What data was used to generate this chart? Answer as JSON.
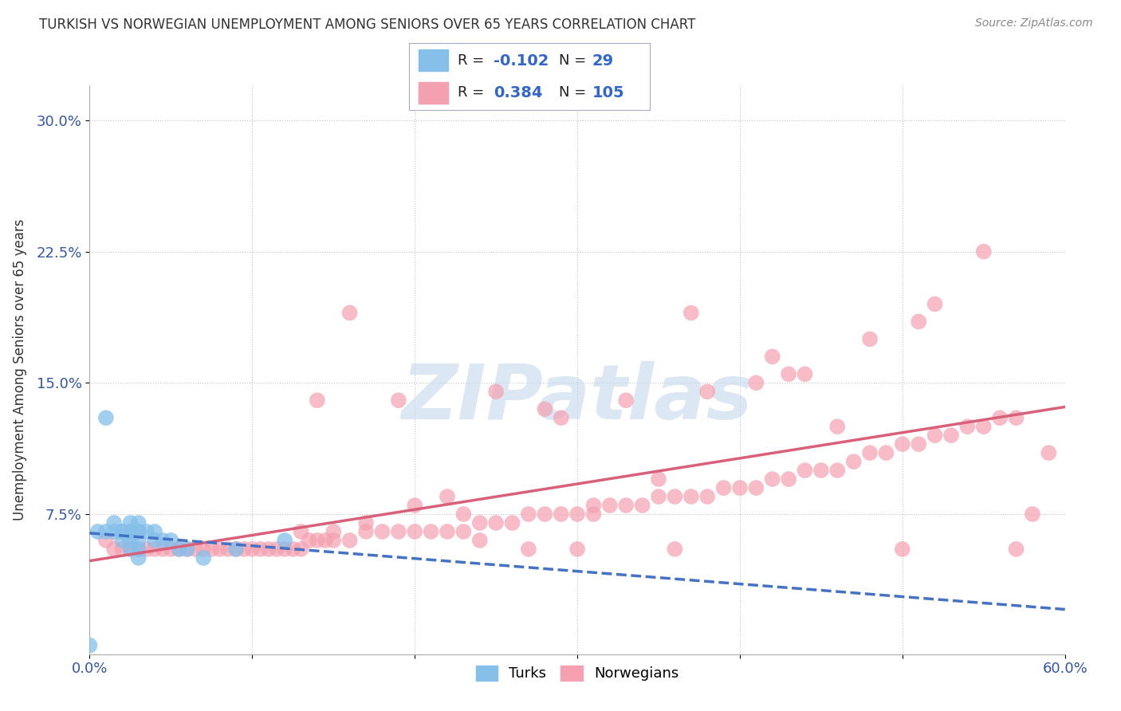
{
  "title": "TURKISH VS NORWEGIAN UNEMPLOYMENT AMONG SENIORS OVER 65 YEARS CORRELATION CHART",
  "source": "Source: ZipAtlas.com",
  "ylabel": "Unemployment Among Seniors over 65 years",
  "xlim": [
    0.0,
    0.6
  ],
  "ylim": [
    -0.005,
    0.32
  ],
  "yticks": [
    0.075,
    0.15,
    0.225,
    0.3
  ],
  "ytick_labels": [
    "7.5%",
    "15.0%",
    "22.5%",
    "30.0%"
  ],
  "xticks": [
    0.0,
    0.1,
    0.2,
    0.3,
    0.4,
    0.5,
    0.6
  ],
  "xtick_labels": [
    "0.0%",
    "",
    "",
    "",
    "",
    "",
    "60.0%"
  ],
  "turks_R": -0.102,
  "turks_N": 29,
  "norwegians_R": 0.384,
  "norwegians_N": 105,
  "turk_color": "#85BFEA",
  "norwegian_color": "#F4A0B0",
  "turk_line_color": "#4472C4",
  "norwegian_line_color": "#D9607A",
  "watermark": "ZIPatlas",
  "watermark_color": "#C5D8EE",
  "background_color": "#FFFFFF",
  "turks_x": [
    0.0,
    0.005,
    0.01,
    0.015,
    0.015,
    0.02,
    0.02,
    0.02,
    0.025,
    0.025,
    0.025,
    0.025,
    0.025,
    0.03,
    0.03,
    0.03,
    0.03,
    0.03,
    0.03,
    0.035,
    0.04,
    0.04,
    0.045,
    0.05,
    0.055,
    0.06,
    0.07,
    0.09,
    0.12
  ],
  "turks_y": [
    0.0,
    0.065,
    0.065,
    0.07,
    0.065,
    0.065,
    0.065,
    0.06,
    0.07,
    0.065,
    0.065,
    0.06,
    0.055,
    0.07,
    0.065,
    0.065,
    0.06,
    0.055,
    0.05,
    0.065,
    0.065,
    0.06,
    0.06,
    0.06,
    0.055,
    0.055,
    0.05,
    0.055,
    0.06
  ],
  "turks_y_outliers": [
    0.13
  ],
  "turks_x_outliers": [
    0.01
  ],
  "norwegians_x": [
    0.01,
    0.015,
    0.02,
    0.025,
    0.03,
    0.035,
    0.04,
    0.045,
    0.05,
    0.055,
    0.06,
    0.065,
    0.07,
    0.075,
    0.08,
    0.085,
    0.09,
    0.095,
    0.1,
    0.105,
    0.11,
    0.115,
    0.12,
    0.125,
    0.13,
    0.135,
    0.14,
    0.145,
    0.15,
    0.16,
    0.17,
    0.18,
    0.19,
    0.2,
    0.21,
    0.22,
    0.23,
    0.24,
    0.25,
    0.26,
    0.27,
    0.28,
    0.29,
    0.3,
    0.31,
    0.32,
    0.33,
    0.34,
    0.35,
    0.36,
    0.37,
    0.38,
    0.39,
    0.4,
    0.41,
    0.42,
    0.43,
    0.44,
    0.45,
    0.46,
    0.47,
    0.48,
    0.49,
    0.5,
    0.51,
    0.52,
    0.53,
    0.54,
    0.55,
    0.56,
    0.57,
    0.14,
    0.22,
    0.31,
    0.19,
    0.37,
    0.28,
    0.44,
    0.51,
    0.59,
    0.16,
    0.25,
    0.38,
    0.33,
    0.42,
    0.55,
    0.2,
    0.29,
    0.48,
    0.15,
    0.23,
    0.35,
    0.41,
    0.52,
    0.27,
    0.46,
    0.13,
    0.58,
    0.36,
    0.17,
    0.3,
    0.5,
    0.24,
    0.43,
    0.57
  ],
  "norwegians_y": [
    0.06,
    0.055,
    0.055,
    0.055,
    0.055,
    0.055,
    0.055,
    0.055,
    0.055,
    0.055,
    0.055,
    0.055,
    0.055,
    0.055,
    0.055,
    0.055,
    0.055,
    0.055,
    0.055,
    0.055,
    0.055,
    0.055,
    0.055,
    0.055,
    0.055,
    0.06,
    0.06,
    0.06,
    0.06,
    0.06,
    0.065,
    0.065,
    0.065,
    0.065,
    0.065,
    0.065,
    0.065,
    0.07,
    0.07,
    0.07,
    0.075,
    0.075,
    0.075,
    0.075,
    0.075,
    0.08,
    0.08,
    0.08,
    0.085,
    0.085,
    0.085,
    0.085,
    0.09,
    0.09,
    0.09,
    0.095,
    0.095,
    0.1,
    0.1,
    0.1,
    0.105,
    0.11,
    0.11,
    0.115,
    0.115,
    0.12,
    0.12,
    0.125,
    0.125,
    0.13,
    0.13,
    0.14,
    0.085,
    0.08,
    0.14,
    0.19,
    0.135,
    0.155,
    0.185,
    0.11,
    0.19,
    0.145,
    0.145,
    0.14,
    0.165,
    0.225,
    0.08,
    0.13,
    0.175,
    0.065,
    0.075,
    0.095,
    0.15,
    0.195,
    0.055,
    0.125,
    0.065,
    0.075,
    0.055,
    0.07,
    0.055,
    0.055,
    0.06,
    0.155,
    0.055
  ]
}
